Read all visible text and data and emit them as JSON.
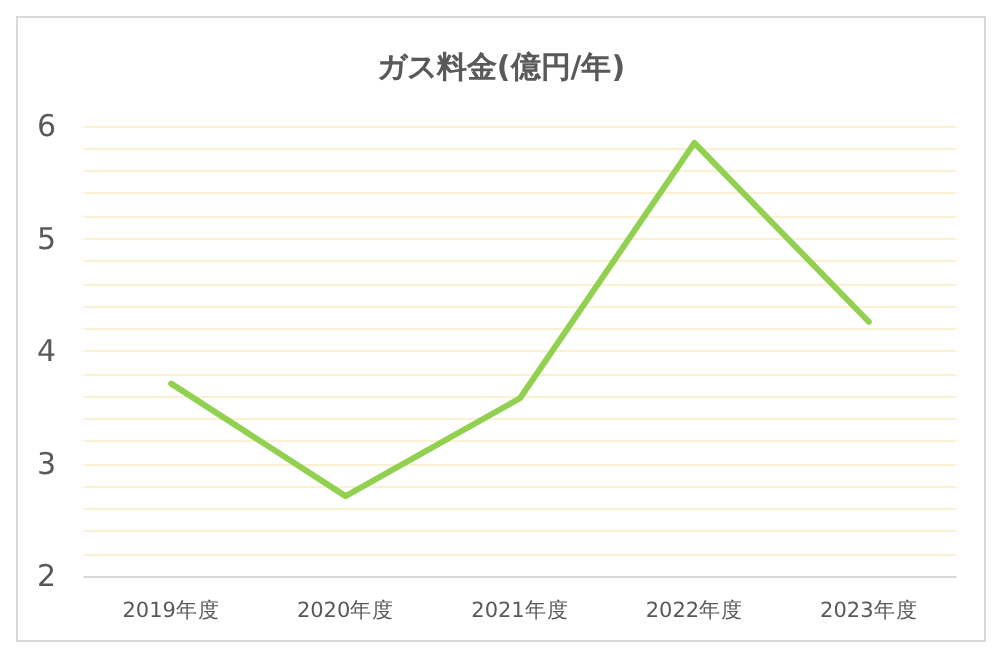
{
  "chart_data": {
    "type": "line",
    "title": "ガス料金(億円/年)",
    "categories": [
      "2019年度",
      "2020年度",
      "2021年度",
      "2022年度",
      "2023年度"
    ],
    "series": [
      {
        "color": "#92d050",
        "values": [
          3.71,
          2.71,
          3.58,
          5.85,
          4.26
        ]
      }
    ],
    "ylim": [
      2,
      6
    ],
    "yticks": [
      2,
      {
        "value": 2.2,
        "label": null
      },
      {
        "value": 2.4,
        "label": null
      },
      {
        "value": 2.6,
        "label": null
      },
      {
        "value": 2.8,
        "label": null
      },
      3,
      {
        "value": 3.2,
        "label": null
      },
      {
        "value": 3.4,
        "label": null
      },
      {
        "value": 3.6,
        "label": null
      },
      {
        "value": 3.8,
        "label": null
      },
      4,
      {
        "value": 4.2,
        "label": null
      },
      {
        "value": 4.4,
        "label": null
      },
      {
        "value": 4.6,
        "label": null
      },
      {
        "value": 4.8,
        "label": null
      },
      5,
      {
        "value": 5.2,
        "label": null
      },
      {
        "value": 5.4,
        "label": null
      },
      {
        "value": 5.6,
        "label": null
      },
      {
        "value": 5.8,
        "label": null
      },
      6
    ],
    "grid": "y",
    "marker": "none",
    "line_style": "solid"
  }
}
